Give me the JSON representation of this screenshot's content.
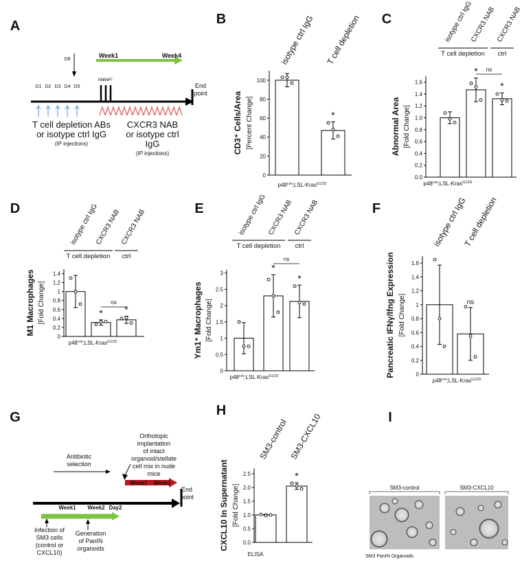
{
  "chart_data": [
    {
      "type": "bar",
      "panel": "B",
      "ylabel": "CD3⁺ Cells/Area",
      "ylabel_sub": "[Percent Change]",
      "categories": [
        "isotype ctrl IgG",
        "T cell depletion"
      ],
      "values": [
        100,
        47
      ],
      "errors": [
        7,
        9
      ],
      "points": [
        [
          103,
          103,
          97
        ],
        [
          55,
          48,
          41
        ]
      ],
      "significance": [
        null,
        "*"
      ],
      "ylim": [
        0,
        110
      ],
      "yticks": [
        0,
        20,
        40,
        60,
        80,
        100
      ],
      "footer": [
        "p48",
        "cre",
        ";LSL-Kras",
        "G12D"
      ],
      "bar_color": "#ffffff",
      "edge_color": "#000000"
    },
    {
      "type": "bar",
      "panel": "C",
      "ylabel": "Abnormal Area",
      "ylabel_sub": "[Fold Change]",
      "categories": [
        "isotype ctrl IgG",
        "CXCR3 NAB",
        "CXCR3 NAB"
      ],
      "groups": [
        "T cell depletion",
        "ctrl"
      ],
      "values": [
        1.0,
        1.47,
        1.32
      ],
      "errors": [
        0.1,
        0.2,
        0.1
      ],
      "points": [
        [
          1.08,
          0.98,
          0.92
        ],
        [
          1.58,
          1.52,
          1.3
        ],
        [
          1.4,
          1.3,
          1.28
        ]
      ],
      "significance": [
        null,
        "*",
        "*"
      ],
      "brackets": [
        "ns"
      ],
      "ylim": [
        0,
        1.7
      ],
      "yticks": [
        {
          "value": 0,
          "label": "0.0"
        },
        0.2,
        0.4,
        0.6,
        0.8,
        {
          "value": 1,
          "label": "1.0"
        },
        1.2,
        1.4,
        1.6
      ],
      "footer": [
        "p48",
        "cre",
        ";LSL-Kras",
        "G12D"
      ],
      "bar_color": "#ffffff",
      "edge_color": "#000000"
    },
    {
      "type": "bar",
      "panel": "D",
      "ylabel": "M1 Macrophages",
      "ylabel_sub": "[Fold Change]",
      "categories": [
        "isotype ctrl IgG",
        "CXCR3 NAB",
        "CXCR3 NAB"
      ],
      "groups": [
        "T cell depletion",
        "ctrl"
      ],
      "values": [
        1.0,
        0.31,
        0.37
      ],
      "errors": [
        0.36,
        0.06,
        0.08
      ],
      "points": [
        [
          1.3,
          1.0,
          0.72
        ],
        [
          0.27,
          0.32,
          0.33
        ],
        [
          0.4,
          0.42,
          0.3
        ]
      ],
      "significance": [
        null,
        "*",
        "*"
      ],
      "brackets": [
        "ns"
      ],
      "ylim": [
        0,
        1.5
      ],
      "yticks": [
        0,
        0.2,
        0.4,
        0.6,
        0.8,
        1,
        1.2,
        1.4
      ],
      "footer": [
        "p48",
        "cre",
        ";LSL-Kras",
        "G12D"
      ],
      "bar_color": "#ffffff",
      "edge_color": "#000000"
    },
    {
      "type": "bar",
      "panel": "E",
      "ylabel": "Ym1⁺ Macrophages",
      "ylabel_sub": "[Fold Change]",
      "categories": [
        "isotype ctrl IgG",
        "CXCR3 NAB",
        "CXCR3 NAB"
      ],
      "groups": [
        "T cell depletion",
        "ctrl"
      ],
      "values": [
        1.0,
        2.3,
        2.13
      ],
      "errors": [
        0.48,
        0.65,
        0.5
      ],
      "points": [
        [
          1.5,
          0.75,
          0.75
        ],
        [
          2.8,
          2.3,
          1.8
        ],
        [
          2.6,
          2.1,
          2.05
        ]
      ],
      "significance": [
        null,
        "*",
        "*"
      ],
      "brackets": [
        "ns"
      ],
      "ylim": [
        0,
        3.1
      ],
      "yticks": [
        0,
        0.5,
        1,
        1.5,
        2,
        2.5,
        3
      ],
      "footer": [
        "p48",
        "cre",
        ";LSL-Kras",
        "G12D"
      ],
      "bar_color": "#ffffff",
      "edge_color": "#000000"
    },
    {
      "type": "bar",
      "panel": "F",
      "ylabel": "Pancreatic IFNγ/Ifng Expression",
      "ylabel_sub": "[Fold Change]",
      "categories": [
        "isotype ctrl IgG",
        "T cell depletion"
      ],
      "values": [
        1.0,
        0.58
      ],
      "errors": [
        0.57,
        0.38
      ],
      "points": [
        [
          1.65,
          0.8,
          0.4
        ],
        [
          0.97,
          0.55,
          0.25
        ]
      ],
      "significance": [
        null,
        "ns"
      ],
      "ylim": [
        0,
        1.7
      ],
      "yticks": [
        0,
        0.2,
        0.4,
        0.6,
        0.8,
        1,
        1.2,
        1.4,
        1.6
      ],
      "footer": [
        "p48",
        "cre",
        ";LSL-Kras",
        "G12D"
      ],
      "bar_color": "#ffffff",
      "edge_color": "#000000"
    },
    {
      "type": "bar",
      "panel": "H",
      "ylabel": "CXCL10 In Supernatant",
      "ylabel_sub": "[Fold Change]",
      "categories": [
        "SM3-control",
        "SM3-CXCL10"
      ],
      "values": [
        1.0,
        2.05
      ],
      "errors": [
        0.03,
        0.12
      ],
      "points": [
        [
          1.02,
          0.98,
          1.0
        ],
        [
          2.15,
          2.05,
          1.95
        ]
      ],
      "significance": [
        null,
        "*"
      ],
      "ylim": [
        0,
        2.7
      ],
      "yticks": [
        {
          "value": 0,
          "label": "0.0"
        },
        0.5,
        {
          "value": 1,
          "label": "1.0"
        },
        1.5,
        {
          "value": 2,
          "label": "2.0"
        },
        2.5
      ],
      "footer": [
        "ELISA"
      ],
      "bar_color": "#ffffff",
      "edge_color": "#000000"
    }
  ],
  "timeline_A": {
    "panel": "A",
    "marker": "D8",
    "week_start": "Week1",
    "week_end": "Week4",
    "days": [
      "D1",
      "D2",
      "D3",
      "D4",
      "D5"
    ],
    "weekdays": [
      "Mo",
      "We",
      "Fr"
    ],
    "end_point": [
      "End",
      "point"
    ],
    "depletion_text": [
      "T cell depletion ABs",
      "or isotype ctrl IgG",
      "(IP injections)"
    ],
    "nab_text": [
      "CXCR3 NAB",
      "or isotype ctrl",
      "IgG",
      "(IP injections)"
    ]
  },
  "timeline_G": {
    "panel": "G",
    "implant_text": [
      "Orthotopic",
      "implantation",
      "of intact",
      "organoid/stellate",
      "cell mix in nude",
      "mice"
    ],
    "selection_text": [
      "Antibiotic",
      "selection"
    ],
    "red_weeks": [
      "Week1",
      "Week2"
    ],
    "green_weeks": [
      "Week1",
      "Week2",
      "Day2"
    ],
    "end_point": [
      "End",
      "point"
    ],
    "infection_text": [
      "Infection of",
      "SM3 cells",
      "(control or",
      "CXCL10)"
    ],
    "generation_text": [
      "Generation",
      "of PanIN",
      "organoids"
    ]
  },
  "image_panel": {
    "panel": "I",
    "labels": [
      "SM3-control",
      "SM3-CXCL10"
    ],
    "caption": "SM3 PanIN Organoids"
  }
}
